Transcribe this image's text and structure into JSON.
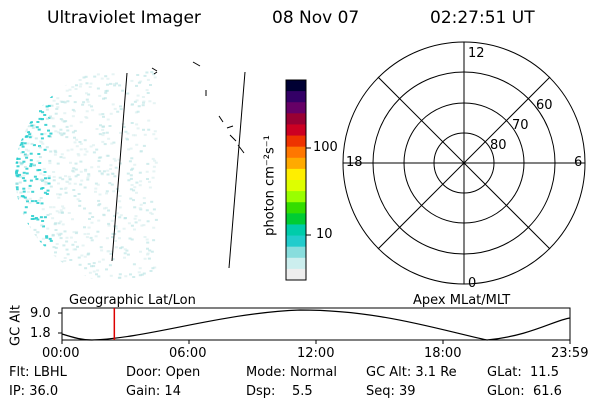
{
  "header": {
    "instrument": "Ultraviolet Imager",
    "date": "08 Nov 07",
    "time": "02:27:51 UT"
  },
  "colorbar": {
    "label": "photon cm⁻²s⁻¹",
    "ticks": [
      "100",
      "10"
    ],
    "colors": [
      "#000033",
      "#330066",
      "#660066",
      "#990033",
      "#cc0022",
      "#ee3300",
      "#ff7700",
      "#ffaa00",
      "#ffee00",
      "#ddff00",
      "#99ff00",
      "#33dd00",
      "#00cc33",
      "#00ccaa",
      "#22cccc",
      "#88dddd",
      "#cceeee",
      "#eeeeee"
    ]
  },
  "polar_grid": {
    "latitude_labels": [
      "80",
      "70",
      "60"
    ],
    "mlt_labels": {
      "top": "12",
      "right": "6",
      "bottom": "0",
      "left": "18"
    }
  },
  "panel_labels": {
    "left": "Geographic Lat/Lon",
    "right": "Apex  MLat/MLT"
  },
  "altitude_plot": {
    "axis_label": "GC Alt",
    "y_ticks": [
      "9.0",
      "1.8"
    ],
    "x_ticks": [
      "00:00",
      "06:00",
      "12:00",
      "18:00",
      "23:59"
    ],
    "current_time_fraction": 0.103
  },
  "footer": {
    "row1": [
      {
        "key": "Flt:",
        "value": "LBHL"
      },
      {
        "key": "Door:",
        "value": "Open"
      },
      {
        "key": "Mode:",
        "value": "Normal"
      },
      {
        "key": "GC Alt:",
        "value": "3.1 Re"
      },
      {
        "key": "GLat:",
        "value": "11.5"
      }
    ],
    "row2": [
      {
        "key": "IP:",
        "value": "36.0"
      },
      {
        "key": "Gain:",
        "value": "14"
      },
      {
        "key": "Dsp:",
        "value": "5.5"
      },
      {
        "key": "Seq:",
        "value": "39"
      },
      {
        "key": "GLon:",
        "value": "61.6"
      }
    ]
  },
  "colors": {
    "cursor": "#dd0000",
    "aurora_cyan": "#22cccc"
  }
}
